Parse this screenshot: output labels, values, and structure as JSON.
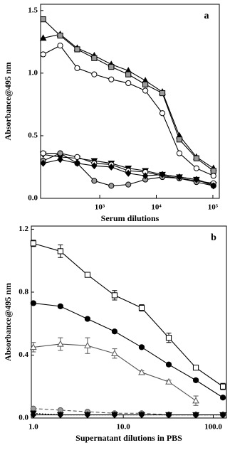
{
  "chart_data": [
    {
      "type": "line",
      "panel": "a",
      "xlabel": "Serum dilutions",
      "ylabel": "Absorbance@495 nm",
      "xscale": "log",
      "xlim": [
        90,
        130000
      ],
      "ylim": [
        0,
        1.55
      ],
      "xticks": [
        {
          "value": 1000,
          "label": "10³"
        },
        {
          "value": 10000,
          "label": "10⁴"
        },
        {
          "value": 100000,
          "label": "10⁵"
        }
      ],
      "yticks": [
        {
          "value": 0,
          "label": "0.0"
        },
        0.5,
        {
          "value": 1,
          "label": "1.0"
        },
        1.5
      ],
      "x": [
        100,
        200,
        400,
        800,
        1600,
        3200,
        6400,
        12800,
        25600,
        51200,
        102400
      ],
      "series": [
        {
          "marker": "triangle",
          "color": "#000000",
          "fill": "#000000",
          "values": [
            1.28,
            1.31,
            1.2,
            1.14,
            1.07,
            1.02,
            0.94,
            0.85,
            0.5,
            0.33,
            0.24
          ]
        },
        {
          "marker": "square",
          "color": "#000000",
          "fill": "#9a9a9a",
          "values": [
            1.43,
            1.3,
            1.19,
            1.12,
            1.05,
            0.99,
            0.91,
            0.84,
            0.47,
            0.32,
            0.22
          ]
        },
        {
          "marker": "circle",
          "color": "#000000",
          "fill": "#ffffff",
          "values": [
            1.15,
            1.22,
            1.04,
            0.99,
            0.95,
            0.92,
            0.86,
            0.68,
            0.36,
            0.24,
            0.18
          ]
        },
        {
          "marker": "triangle-down",
          "color": "#000000",
          "fill": "#000000",
          "values": [
            0.35,
            0.33,
            0.32,
            0.3,
            0.28,
            0.24,
            0.22,
            0.19,
            0.17,
            0.15,
            0.11
          ]
        },
        {
          "marker": "circle",
          "color": "#000000",
          "fill": "#ffffff",
          "values": [
            0.36,
            0.36,
            0.33,
            0.28,
            0.27,
            0.22,
            0.21,
            0.18,
            0.16,
            0.14,
            0.12
          ]
        },
        {
          "marker": "circle",
          "color": "#000000",
          "fill": "#9a9a9a",
          "values": [
            0.3,
            0.36,
            0.28,
            0.14,
            0.1,
            0.11,
            0.15,
            0.17,
            0.16,
            0.13,
            0.1
          ]
        },
        {
          "marker": "diamond",
          "color": "#000000",
          "fill": "#000000",
          "values": [
            0.28,
            0.31,
            0.28,
            0.26,
            0.25,
            0.2,
            0.18,
            0.19,
            0.17,
            0.15,
            0.1
          ]
        }
      ]
    },
    {
      "type": "line",
      "panel": "b",
      "xlabel": "Supernatant dilutions in PBS",
      "ylabel": "Absorbance@495 nm",
      "xscale": "log",
      "xlim": [
        0.95,
        140
      ],
      "ylim": [
        0,
        1.22
      ],
      "xticks": [
        {
          "value": 1,
          "label": "1.0"
        },
        {
          "value": 10,
          "label": "10.0"
        },
        {
          "value": 100,
          "label": "100.0"
        }
      ],
      "yticks": [
        {
          "value": 0,
          "label": "0.0"
        },
        0.4,
        0.8,
        1.2
      ],
      "x": [
        1,
        2,
        4,
        8,
        16,
        32,
        64,
        128
      ],
      "series": [
        {
          "marker": "square",
          "color": "#000000",
          "fill": "#ffffff",
          "values": [
            1.11,
            1.06,
            0.91,
            0.78,
            0.7,
            0.51,
            0.32,
            0.2
          ],
          "errors": [
            0.02,
            0.04,
            0.01,
            0.03,
            0.02,
            0.03,
            0.01,
            0.02
          ]
        },
        {
          "marker": "circle",
          "color": "#000000",
          "fill": "#000000",
          "values": [
            0.73,
            0.71,
            0.63,
            0.55,
            0.45,
            0.34,
            0.24,
            0.13
          ],
          "errors": [
            0.01,
            0.01,
            0.01,
            0.01,
            0.01,
            0.01,
            0.01,
            0.01
          ]
        },
        {
          "marker": "triangle",
          "color": "#555555",
          "fill": "#ffffff",
          "values": [
            0.45,
            0.47,
            0.46,
            0.41,
            0.29,
            0.23,
            0.11,
            null
          ],
          "errors": [
            0.03,
            0.04,
            0.05,
            0.03,
            0.01,
            0.01,
            0.03,
            null
          ]
        },
        {
          "marker": "circle",
          "color": "#555555",
          "fill": "#9a9a9a",
          "dash": "5,3",
          "values": [
            0.06,
            0.05,
            0.04,
            0.03,
            0.03,
            0.02,
            0.02,
            0.02
          ]
        },
        {
          "marker": "triangle-down",
          "color": "#000000",
          "fill": "#000000",
          "dash": "2,2",
          "values": [
            0.03,
            0.02,
            0.02,
            0.02,
            0.02,
            0.02,
            0.02,
            0.02
          ]
        },
        {
          "marker": "diamond",
          "color": "#000000",
          "fill": "#000000",
          "values": [
            0.02,
            0.02,
            0.02,
            0.02,
            0.02,
            0.02,
            0.02,
            0.02
          ]
        }
      ]
    }
  ]
}
